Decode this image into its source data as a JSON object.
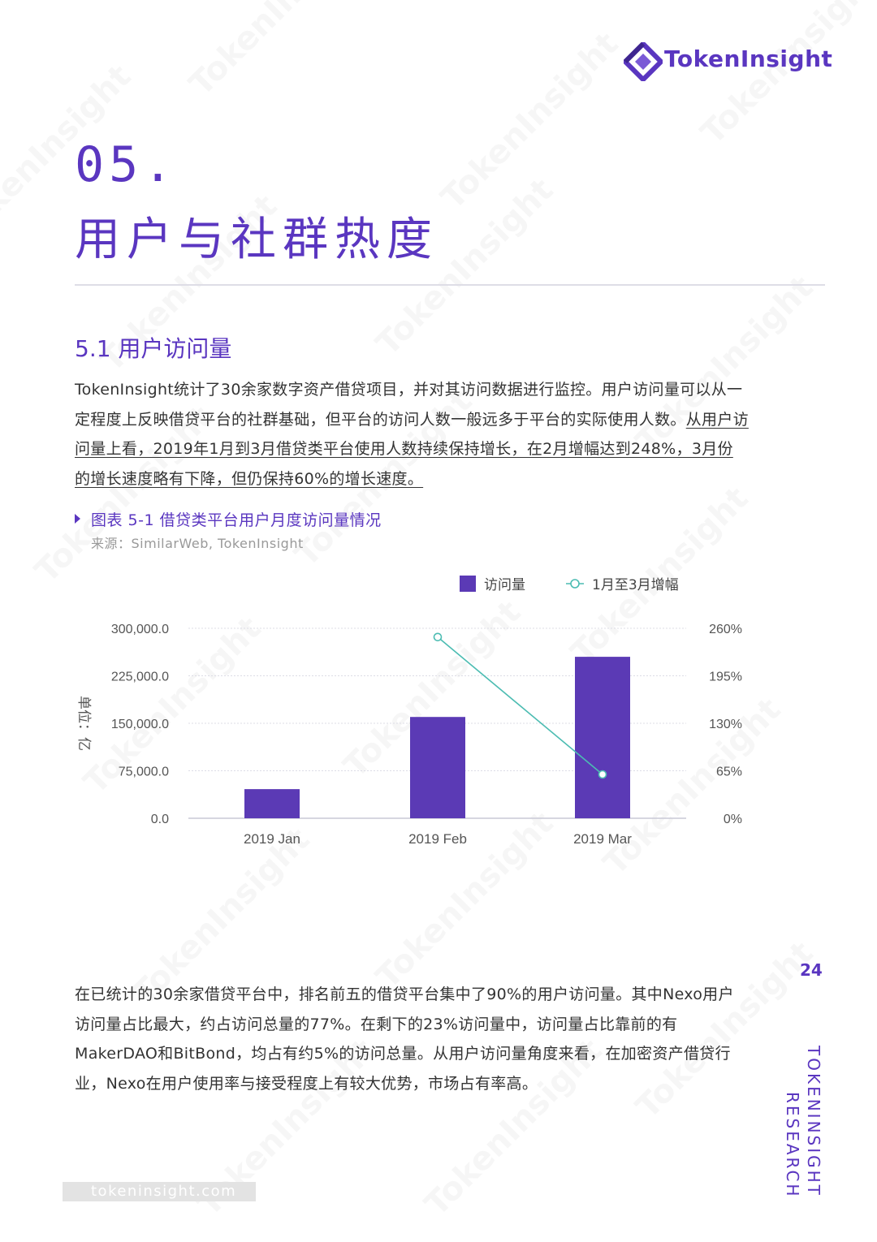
{
  "header": {
    "logo_text": "TokenInsight"
  },
  "section": {
    "number": "05.",
    "title": "用户与社群热度"
  },
  "subsection": {
    "title": "5.1 用户访问量"
  },
  "paragraph1": {
    "plain": "TokenInsight统计了30余家数字资产借贷项目，并对其访问数据进行监控。用户访问量可以从一定程度上反映借贷平台的社群基础，但平台的访问人数一般远多于平台的实际使用人数。",
    "underlined": "从用户访问量上看，2019年1月到3月借贷类平台使用人数持续保持增长，在2月增幅达到248%，3月份的增长速度略有下降，但仍保持60%的增长速度。"
  },
  "figure": {
    "caption": "图表 5-1 借贷类平台用户月度访问量情况",
    "source": "来源：SimilarWeb, TokenInsight"
  },
  "chart_data": {
    "type": "bar",
    "categories": [
      "2019 Jan",
      "2019 Feb",
      "2019 Mar"
    ],
    "series": [
      {
        "name": "访问量",
        "type": "bar",
        "axis": "left",
        "values": [
          46000,
          160000,
          255000
        ],
        "color": "#5b3ab5"
      },
      {
        "name": "1月至3月增幅",
        "type": "line",
        "axis": "right",
        "values": [
          null,
          248,
          60
        ],
        "color": "#4cbcb2"
      }
    ],
    "ylabel": "单位：亿",
    "ylim": [
      0,
      300000
    ],
    "y_ticks": [
      "300,000.0",
      "225,000.0",
      "150,000.0",
      "75,000.0",
      "0.0"
    ],
    "y_tick_values": [
      300000,
      225000,
      150000,
      75000,
      0
    ],
    "y2lim": [
      0,
      260
    ],
    "y2_ticks": [
      "260%",
      "195%",
      "130%",
      "65%",
      "0%"
    ],
    "y2_tick_values": [
      260,
      195,
      130,
      65,
      0
    ],
    "grid": true,
    "legend_position": "top-right"
  },
  "paragraph2": "在已统计的30余家借贷平台中，排名前五的借贷平台集中了90%的用户访问量。其中Nexo用户访问量占比最大，约占访问总量的77%。在剩下的23%访问量中，访问量占比靠前的有MakerDAO和BitBond，均占有约5%的访问总量。从用户访问量角度来看，在加密资产借贷行业，Nexo在用户使用率与接受程度上有较大优势，市场占有率高。",
  "page_number": "24",
  "side_text": {
    "line1": "TOKENINSIGHT",
    "line2": "RESEARCH"
  },
  "footer": {
    "url": "tokeninsight.com"
  },
  "watermark": {
    "text": "TokenInsight"
  },
  "colors": {
    "accent": "#5a36c0",
    "bar": "#5b3ab5",
    "line": "#4cbcb2"
  }
}
